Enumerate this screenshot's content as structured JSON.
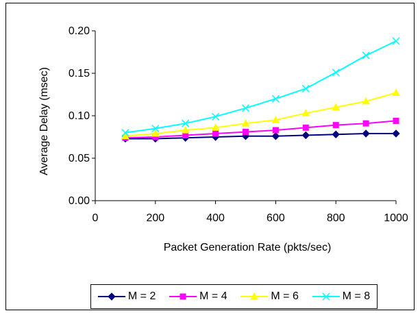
{
  "chart_data": {
    "type": "line",
    "x": [
      100,
      200,
      300,
      400,
      500,
      600,
      700,
      800,
      900,
      1000
    ],
    "xlabel": "Packet Generation Rate (pkts/sec)",
    "ylabel": "Average Delay (msec)",
    "xlim": [
      0,
      1000
    ],
    "ylim": [
      0.0,
      0.2
    ],
    "x_ticks": [
      "0",
      "200",
      "400",
      "600",
      "800",
      "1000"
    ],
    "y_ticks": [
      "0.00",
      "0.05",
      "0.10",
      "0.15",
      "0.20"
    ],
    "grid": false,
    "legend_position": "bottom",
    "series": [
      {
        "name": "M = 2",
        "color": "#00007f",
        "marker": "diamond",
        "values": [
          0.073,
          0.073,
          0.074,
          0.075,
          0.076,
          0.076,
          0.077,
          0.078,
          0.079,
          0.079
        ]
      },
      {
        "name": "M = 4",
        "color": "#ff00ff",
        "marker": "square",
        "values": [
          0.074,
          0.075,
          0.077,
          0.079,
          0.081,
          0.083,
          0.086,
          0.089,
          0.091,
          0.094
        ]
      },
      {
        "name": "M = 6",
        "color": "#ffff00",
        "marker": "triangle",
        "values": [
          0.076,
          0.079,
          0.083,
          0.086,
          0.091,
          0.095,
          0.103,
          0.11,
          0.117,
          0.127
        ]
      },
      {
        "name": "M = 8",
        "color": "#00ffff",
        "marker": "x",
        "values": [
          0.08,
          0.085,
          0.091,
          0.099,
          0.109,
          0.12,
          0.132,
          0.151,
          0.171,
          0.188
        ]
      }
    ]
  }
}
